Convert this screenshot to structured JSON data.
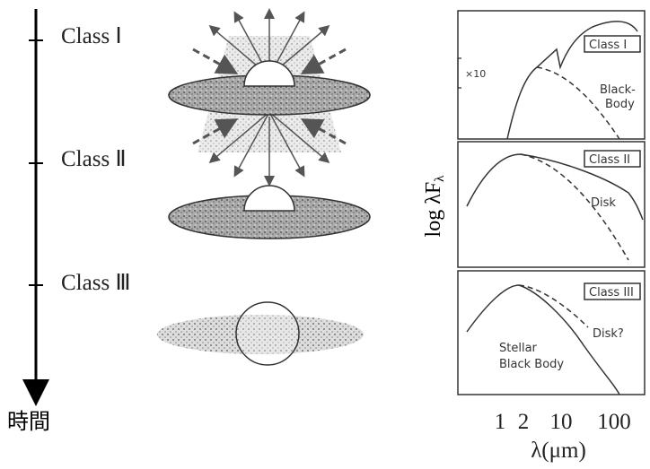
{
  "timeline": {
    "label": "時間",
    "stages": [
      "Class Ⅰ",
      "Class Ⅱ",
      "Class Ⅲ"
    ]
  },
  "sed": {
    "panels": [
      {
        "label": "Class I",
        "annotations": [
          "×10",
          "Black-",
          "Body"
        ]
      },
      {
        "label": "Class II",
        "annotations": [
          "Disk"
        ]
      },
      {
        "label": "Class III",
        "annotations": [
          "Disk?",
          "Stellar",
          "Black Body"
        ]
      }
    ],
    "ylabel": "log λF",
    "ylabel_sub": "λ",
    "xticks": [
      "1",
      "2",
      "10",
      "100"
    ],
    "xlabel": "λ(μm)"
  }
}
